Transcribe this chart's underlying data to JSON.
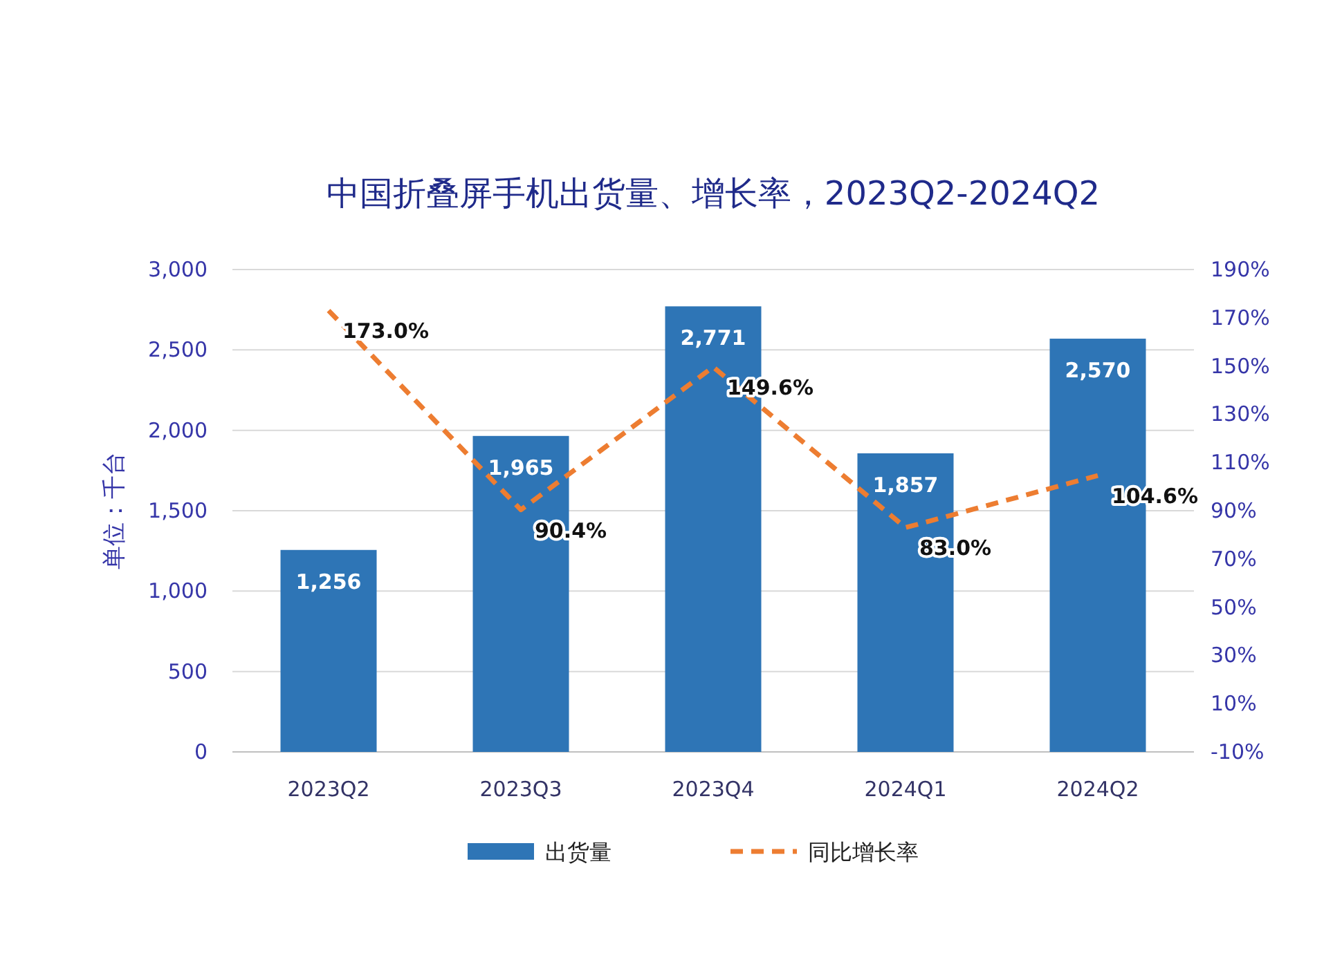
{
  "chart_data": {
    "type": "bar",
    "title": "中国折叠屏手机出货量、增长率，2023Q2-2024Q2",
    "ylabel": "单位：千台",
    "categories": [
      "2023Q2",
      "2023Q3",
      "2023Q4",
      "2024Q1",
      "2024Q2"
    ],
    "series": [
      {
        "name": "出货量",
        "color": "#2e75b6",
        "values": [
          1256,
          1965,
          2771,
          1857,
          2570
        ],
        "value_labels": [
          "1,256",
          "1,965",
          "2,771",
          "1,857",
          "2,570"
        ]
      },
      {
        "name": "同比增长率",
        "type": "line",
        "axis": "y2",
        "color": "#ed7d31",
        "line_style": "dashed",
        "marker": "none",
        "values": [
          173.0,
          90.4,
          149.6,
          83.0,
          104.6
        ],
        "value_labels": [
          "173.0%",
          "90.4%",
          "149.6%",
          "83.0%",
          "104.6%"
        ]
      }
    ],
    "ylim": [
      0,
      3000
    ],
    "yticks": [
      {
        "value": 0,
        "label": "0"
      },
      {
        "value": 500,
        "label": "500"
      },
      {
        "value": 1000,
        "label": "1,000"
      },
      {
        "value": 1500,
        "label": "1,500"
      },
      {
        "value": 2000,
        "label": "2,000"
      },
      {
        "value": 2500,
        "label": "2,500"
      },
      {
        "value": 3000,
        "label": "3,000"
      }
    ],
    "y2lim": [
      -10,
      190
    ],
    "y2ticks": [
      {
        "value": -10,
        "label": "-10%"
      },
      {
        "value": 10,
        "label": "10%"
      },
      {
        "value": 30,
        "label": "30%"
      },
      {
        "value": 50,
        "label": "50%"
      },
      {
        "value": 70,
        "label": "70%"
      },
      {
        "value": 90,
        "label": "90%"
      },
      {
        "value": 110,
        "label": "110%"
      },
      {
        "value": 130,
        "label": "130%"
      },
      {
        "value": 150,
        "label": "150%"
      },
      {
        "value": 170,
        "label": "170%"
      },
      {
        "value": 190,
        "label": "190%"
      }
    ],
    "grid": "y",
    "legend": "bottom"
  }
}
